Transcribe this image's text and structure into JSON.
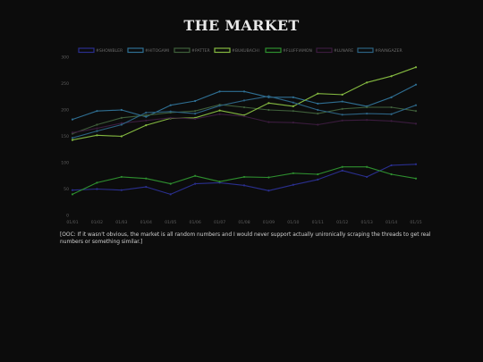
{
  "page": {
    "title": "THE MARKET",
    "note": "[OOC: If it wasn't obvious, the market is all random numbers and I would never support actually unironically scraping the threads to get real numbers or something similar.]"
  },
  "chart_data": {
    "type": "line",
    "title": "THE MARKET",
    "xlabel": "",
    "ylabel": "",
    "categories": [
      "01/01",
      "01/02",
      "01/03",
      "01/04",
      "01/05",
      "01/06",
      "01/07",
      "01/08",
      "01/09",
      "01/10",
      "01/11",
      "01/12",
      "01/13",
      "01/14",
      "01/15"
    ],
    "ylim": [
      0,
      300
    ],
    "yticks": [
      0,
      50,
      100,
      150,
      200,
      250,
      300
    ],
    "grid": false,
    "legend_position": "top",
    "series": [
      {
        "name": "#SHOWBLER",
        "color": "#2a2f8e",
        "values": [
          48,
          50,
          48,
          54,
          40,
          60,
          62,
          57,
          47,
          58,
          68,
          85,
          73,
          95,
          97
        ]
      },
      {
        "name": "#HITOGAMI",
        "color": "#2f6f93",
        "values": [
          182,
          198,
          200,
          187,
          209,
          217,
          235,
          235,
          224,
          224,
          212,
          216,
          207,
          224,
          248
        ]
      },
      {
        "name": "#PATTER",
        "color": "#3f5f3a",
        "values": [
          155,
          172,
          185,
          190,
          195,
          198,
          210,
          205,
          200,
          198,
          193,
          202,
          205,
          205,
          198
        ]
      },
      {
        "name": "#BUKUBACHI",
        "color": "#84b940",
        "values": [
          143,
          152,
          150,
          171,
          184,
          185,
          199,
          190,
          213,
          207,
          231,
          229,
          252,
          264,
          281
        ]
      },
      {
        "name": "#FLUFFIAMON",
        "color": "#2e8f2f",
        "values": [
          40,
          62,
          73,
          70,
          60,
          75,
          64,
          73,
          72,
          80,
          78,
          92,
          92,
          78,
          70
        ]
      },
      {
        "name": "#LUNARE",
        "color": "#3b1c3e",
        "values": [
          157,
          165,
          175,
          180,
          185,
          183,
          192,
          188,
          177,
          176,
          172,
          180,
          181,
          179,
          174
        ]
      },
      {
        "name": "#RAINGAZER",
        "color": "#2c6282",
        "values": [
          147,
          160,
          172,
          195,
          197,
          193,
          208,
          218,
          226,
          214,
          200,
          191,
          193,
          192,
          209
        ]
      }
    ]
  }
}
